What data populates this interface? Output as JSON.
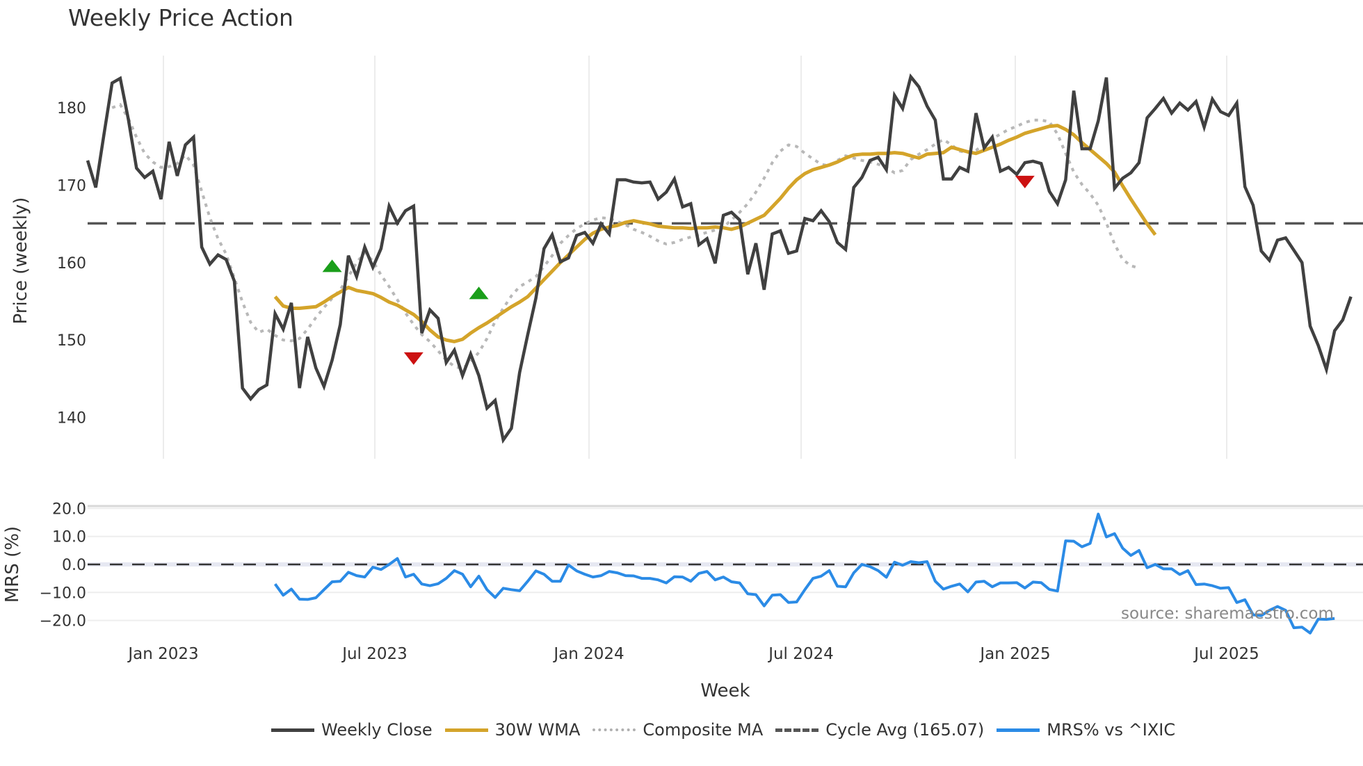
{
  "title": "Weekly Price Action",
  "legend": [
    {
      "label": "Weekly Close",
      "color": "#404040",
      "style": "solid"
    },
    {
      "label": "30W WMA",
      "color": "#d4a42a",
      "style": "solid"
    },
    {
      "label": "Composite MA",
      "color": "#b0b0b0",
      "style": "dotted"
    },
    {
      "label": "Cycle Avg (165.07)",
      "color": "#555555",
      "style": "dashed"
    },
    {
      "label": "MRS% vs ^IXIC",
      "color": "#2b8be6",
      "style": "solid"
    }
  ],
  "source": "source: sharemaestro.com",
  "chart_data": [
    {
      "type": "line",
      "title": "Weekly Price Action",
      "xlabel": "Week",
      "ylabel": "Price (weekly)",
      "x_tick_labels": [
        "Jan 2023",
        "Jul 2023",
        "Jan 2024",
        "Jul 2024",
        "Jan 2025",
        "Jul 2025"
      ],
      "y_ticks": [
        140,
        150,
        160,
        170,
        180
      ],
      "ylim": [
        133.5,
        186.5
      ],
      "grid": true,
      "cycle_avg": 165.07,
      "series": [
        {
          "name": "Weekly Close",
          "start_index": 0,
          "values": [
            173.2,
            169.7,
            176.5,
            183.2,
            183.8,
            178.5,
            172.2,
            171.0,
            171.8,
            168.2,
            175.6,
            171.2,
            175.2,
            176.2,
            162.0,
            159.8,
            161.0,
            160.4,
            157.6,
            143.8,
            142.4,
            143.6,
            144.2,
            153.4,
            151.4,
            154.8,
            143.8,
            150.4,
            146.4,
            144.0,
            147.4,
            152.0,
            160.9,
            158.2,
            162.0,
            159.4,
            161.8,
            167.3,
            165.1,
            166.7,
            167.3,
            150.9,
            153.9,
            152.8,
            147.1,
            148.7,
            145.4,
            148.2,
            145.4,
            141.2,
            142.2,
            137.1,
            138.6,
            145.8,
            150.7,
            155.4,
            161.8,
            163.6,
            160.1,
            160.6,
            163.5,
            163.9,
            162.5,
            165.0,
            163.7,
            170.7,
            170.7,
            170.4,
            170.3,
            170.4,
            168.2,
            169.1,
            170.8,
            167.2,
            167.6,
            162.3,
            163.1,
            159.9,
            166.1,
            166.5,
            165.5,
            158.5,
            162.5,
            156.5,
            163.7,
            164.1,
            161.2,
            161.5,
            165.7,
            165.4,
            166.7,
            165.3,
            162.6,
            161.7,
            169.7,
            171.0,
            173.2,
            173.6,
            172.0,
            181.6,
            179.9,
            184.0,
            182.7,
            180.2,
            178.4,
            170.8,
            170.8,
            172.3,
            171.8,
            179.3,
            174.8,
            176.2,
            171.8,
            172.3,
            171.4,
            172.9,
            173.1,
            172.8,
            169.2,
            167.6,
            170.7,
            182.2,
            174.7,
            174.7,
            178.3,
            183.9,
            169.6,
            170.9,
            171.6,
            172.9,
            178.7,
            179.9,
            181.2,
            179.3,
            180.6,
            179.7,
            180.8,
            177.5,
            181.1,
            179.5,
            179.0,
            180.6,
            169.8,
            167.4,
            161.5,
            160.3,
            162.9,
            163.2,
            161.6,
            160.0,
            151.8,
            149.3,
            146.2,
            151.2,
            152.6,
            155.6
          ]
        },
        {
          "name": "30W WMA",
          "start_index": 23,
          "values": [
            155.6,
            154.4,
            154.1,
            154.1,
            154.2,
            154.3,
            154.9,
            155.6,
            156.2,
            156.8,
            156.4,
            156.2,
            156.0,
            155.5,
            154.9,
            154.5,
            153.9,
            153.3,
            152.4,
            151.3,
            150.4,
            150.0,
            149.8,
            150.1,
            150.9,
            151.6,
            152.2,
            152.9,
            153.6,
            154.3,
            154.9,
            155.6,
            156.7,
            157.8,
            158.9,
            160.0,
            161.0,
            162.0,
            163.0,
            163.8,
            164.3,
            164.6,
            164.8,
            165.2,
            165.4,
            165.2,
            165.0,
            164.7,
            164.6,
            164.5,
            164.5,
            164.4,
            164.5,
            164.5,
            164.6,
            164.5,
            164.3,
            164.6,
            165.1,
            165.6,
            166.1,
            167.2,
            168.3,
            169.6,
            170.7,
            171.5,
            172.0,
            172.3,
            172.6,
            173.0,
            173.5,
            173.9,
            174.0,
            174.0,
            174.1,
            174.1,
            174.2,
            174.1,
            173.8,
            173.5,
            174.0,
            174.1,
            174.2,
            174.9,
            174.6,
            174.3,
            174.1,
            174.5,
            174.9,
            175.3,
            175.8,
            176.2,
            176.7,
            177.0,
            177.3,
            177.6,
            177.7,
            177.2,
            176.5,
            175.5,
            174.6,
            173.7,
            172.8,
            171.7,
            169.9,
            168.2,
            166.6,
            165.0,
            163.6
          ]
        },
        {
          "name": "Composite MA",
          "start_index": 3,
          "values": [
            180.0,
            180.4,
            178.6,
            176.2,
            174.1,
            173.0,
            172.3,
            172.4,
            172.8,
            173.9,
            172.6,
            169.2,
            165.8,
            163.1,
            161.1,
            158.0,
            154.9,
            152.3,
            151.0,
            151.4,
            150.6,
            150.0,
            149.9,
            150.2,
            151.4,
            152.9,
            154.2,
            155.4,
            156.5,
            158.2,
            160.0,
            161.3,
            160.2,
            158.4,
            156.9,
            155.2,
            153.5,
            152.0,
            150.7,
            149.8,
            148.6,
            147.4,
            146.6,
            146.3,
            147.2,
            148.4,
            150.2,
            152.4,
            154.1,
            155.7,
            156.9,
            157.5,
            158.2,
            159.5,
            160.9,
            162.5,
            163.5,
            164.4,
            165.0,
            165.5,
            165.8,
            165.7,
            165.3,
            164.9,
            164.3,
            163.9,
            163.4,
            162.8,
            162.4,
            162.6,
            163.0,
            163.3,
            163.6,
            163.9,
            164.2,
            164.6,
            165.5,
            166.5,
            167.6,
            169.1,
            170.9,
            172.9,
            174.4,
            175.2,
            175.0,
            174.1,
            173.4,
            172.7,
            172.5,
            173.2,
            173.8,
            173.5,
            173.2,
            173.0,
            172.7,
            172.3,
            171.6,
            171.9,
            173.3,
            174.0,
            174.6,
            175.3,
            175.9,
            175.2,
            174.4,
            174.2,
            174.5,
            175.3,
            176.0,
            176.6,
            177.2,
            177.6,
            178.1,
            178.4,
            178.4,
            178.2,
            176.6,
            174.1,
            171.7,
            170.1,
            168.9,
            167.4,
            165.1,
            162.4,
            160.4,
            159.6,
            159.3
          ]
        }
      ],
      "markers": [
        {
          "type": "buy",
          "shape": "triangle-up",
          "color": "#1a9e1a",
          "x_index": 30,
          "y": 159.5
        },
        {
          "type": "sell",
          "shape": "triangle-down",
          "color": "#cc1111",
          "x_index": 40,
          "y": 147.7
        },
        {
          "type": "buy",
          "shape": "triangle-up",
          "color": "#1a9e1a",
          "x_index": 48,
          "y": 156.0
        },
        {
          "type": "sell",
          "shape": "triangle-down",
          "color": "#cc1111",
          "x_index": 115,
          "y": 170.5
        }
      ]
    },
    {
      "type": "line",
      "ylabel": "MRS (%)",
      "y_ticks": [
        "20.0",
        "10.0",
        "0.0",
        "−10.0",
        "−20.0"
      ],
      "ylim": [
        -26,
        22
      ],
      "grid": true,
      "series": [
        {
          "name": "MRS% vs ^IXIC",
          "start_index": 23,
          "values": [
            -7.0,
            -11.0,
            -8.8,
            -12.4,
            -12.5,
            -11.9,
            -9.0,
            -6.2,
            -6.0,
            -2.8,
            -4.0,
            -4.5,
            -1.0,
            -1.8,
            0.0,
            2.1,
            -4.5,
            -3.5,
            -7.0,
            -7.6,
            -6.9,
            -5.0,
            -2.2,
            -3.5,
            -8.0,
            -4.2,
            -9.0,
            -11.8,
            -8.5,
            -9.0,
            -9.4,
            -6.0,
            -2.3,
            -3.5,
            -6.0,
            -6.0,
            -0.2,
            -2.3,
            -3.5,
            -4.5,
            -4.0,
            -2.5,
            -3.0,
            -4.0,
            -4.1,
            -5.0,
            -5.0,
            -5.5,
            -6.6,
            -4.4,
            -4.5,
            -6.0,
            -3.2,
            -2.5,
            -5.5,
            -4.5,
            -6.2,
            -6.6,
            -10.5,
            -10.8,
            -14.8,
            -11.0,
            -10.8,
            -13.6,
            -13.4,
            -9.0,
            -5.0,
            -4.2,
            -2.2,
            -7.8,
            -8.0,
            -3.0,
            0.0,
            -0.8,
            -2.2,
            -4.6,
            0.8,
            -0.3,
            1.0,
            0.6,
            1.0,
            -6.0,
            -8.8,
            -7.8,
            -7.0,
            -9.8,
            -6.3,
            -6.0,
            -8.0,
            -6.6,
            -6.6,
            -6.5,
            -8.4,
            -6.3,
            -6.5,
            -8.9,
            -9.5,
            8.4,
            8.3,
            6.3,
            7.5,
            18.0,
            9.8,
            11.0,
            5.8,
            3.2,
            5.0,
            -1.2,
            0.0,
            -1.6,
            -1.6,
            -3.6,
            -2.2,
            -7.2,
            -7.0,
            -7.6,
            -8.5,
            -8.3,
            -13.6,
            -12.6,
            -18.0,
            -18.3,
            -16.4,
            -15.0,
            -16.4,
            -22.6,
            -22.4,
            -24.5,
            -19.5,
            -19.6,
            -19.3
          ]
        }
      ]
    }
  ]
}
